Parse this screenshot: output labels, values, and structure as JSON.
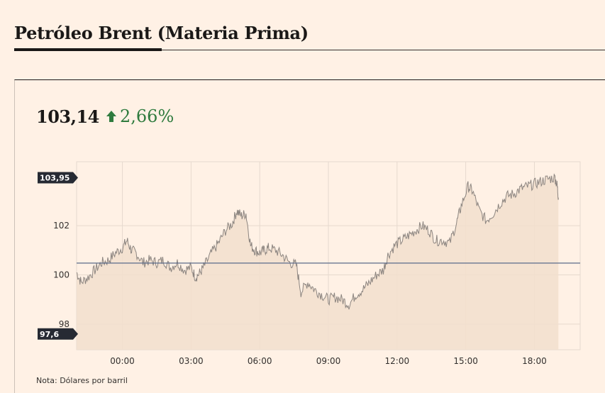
{
  "header": {
    "title": "Petróleo Brent (Materia Prima)"
  },
  "quote": {
    "price": "103,14",
    "change": "2,66%",
    "change_color": "#2f7b3e"
  },
  "note": "Nota: Dólares por barril",
  "colors": {
    "line": "#8c8580",
    "area": "#f2dfce",
    "reference": "#5a6b8a",
    "grid": "#e6d9ce",
    "flag": "#262a33"
  },
  "chart_data": {
    "type": "area",
    "title": "",
    "xlabel": "",
    "ylabel": "",
    "x_tick_labels": [
      "00:00",
      "03:00",
      "06:00",
      "09:00",
      "12:00",
      "15:00",
      "18:00"
    ],
    "y_tick_labels": [
      "102",
      "100",
      "98"
    ],
    "y_ticks": [
      102,
      100,
      98
    ],
    "ylim": [
      96.96,
      104.6
    ],
    "x_range_hours": [
      -2,
      20
    ],
    "reference_line": 100.48,
    "high_label": "103,95",
    "low_label": "97,6",
    "high": 103.95,
    "low": 97.6,
    "grid": true,
    "points": [
      [
        -2.0,
        100.1
      ],
      [
        -1.8,
        99.7
      ],
      [
        -1.5,
        99.9
      ],
      [
        -1.2,
        100.2
      ],
      [
        -0.9,
        100.5
      ],
      [
        -0.6,
        100.6
      ],
      [
        -0.3,
        100.9
      ],
      [
        0.0,
        101.1
      ],
      [
        0.2,
        101.4
      ],
      [
        0.4,
        101.0
      ],
      [
        0.6,
        100.9
      ],
      [
        0.9,
        100.5
      ],
      [
        1.2,
        100.6
      ],
      [
        1.5,
        100.5
      ],
      [
        1.8,
        100.6
      ],
      [
        2.1,
        100.3
      ],
      [
        2.4,
        100.5
      ],
      [
        2.7,
        100.2
      ],
      [
        3.0,
        100.3
      ],
      [
        3.2,
        99.9
      ],
      [
        3.4,
        100.1
      ],
      [
        3.6,
        100.4
      ],
      [
        3.9,
        100.9
      ],
      [
        4.2,
        101.3
      ],
      [
        4.5,
        101.8
      ],
      [
        4.8,
        102.1
      ],
      [
        5.0,
        102.6
      ],
      [
        5.2,
        102.4
      ],
      [
        5.4,
        102.5
      ],
      [
        5.6,
        101.2
      ],
      [
        5.8,
        101.0
      ],
      [
        6.0,
        100.9
      ],
      [
        6.2,
        101.0
      ],
      [
        6.4,
        101.1
      ],
      [
        6.7,
        101.0
      ],
      [
        7.0,
        100.8
      ],
      [
        7.3,
        100.5
      ],
      [
        7.6,
        100.4
      ],
      [
        7.8,
        99.3
      ],
      [
        8.1,
        99.7
      ],
      [
        8.4,
        99.4
      ],
      [
        8.7,
        99.2
      ],
      [
        9.0,
        99.0
      ],
      [
        9.3,
        99.1
      ],
      [
        9.6,
        99.0
      ],
      [
        9.9,
        98.8
      ],
      [
        10.2,
        99.2
      ],
      [
        10.5,
        99.4
      ],
      [
        10.8,
        99.7
      ],
      [
        11.1,
        100.0
      ],
      [
        11.4,
        100.2
      ],
      [
        11.6,
        100.8
      ],
      [
        11.9,
        101.2
      ],
      [
        12.2,
        101.4
      ],
      [
        12.5,
        101.6
      ],
      [
        12.8,
        101.8
      ],
      [
        13.1,
        102.0
      ],
      [
        13.4,
        101.8
      ],
      [
        13.7,
        101.4
      ],
      [
        14.0,
        101.4
      ],
      [
        14.3,
        101.3
      ],
      [
        14.6,
        102.1
      ],
      [
        14.8,
        102.8
      ],
      [
        15.1,
        103.6
      ],
      [
        15.3,
        103.4
      ],
      [
        15.6,
        102.6
      ],
      [
        15.9,
        102.2
      ],
      [
        16.2,
        102.5
      ],
      [
        16.5,
        102.9
      ],
      [
        16.8,
        103.2
      ],
      [
        17.1,
        103.3
      ],
      [
        17.4,
        103.5
      ],
      [
        17.7,
        103.6
      ],
      [
        18.0,
        103.7
      ],
      [
        18.3,
        103.8
      ],
      [
        18.6,
        103.9
      ],
      [
        18.9,
        103.95
      ],
      [
        19.0,
        103.6
      ],
      [
        19.05,
        103.14
      ]
    ]
  }
}
